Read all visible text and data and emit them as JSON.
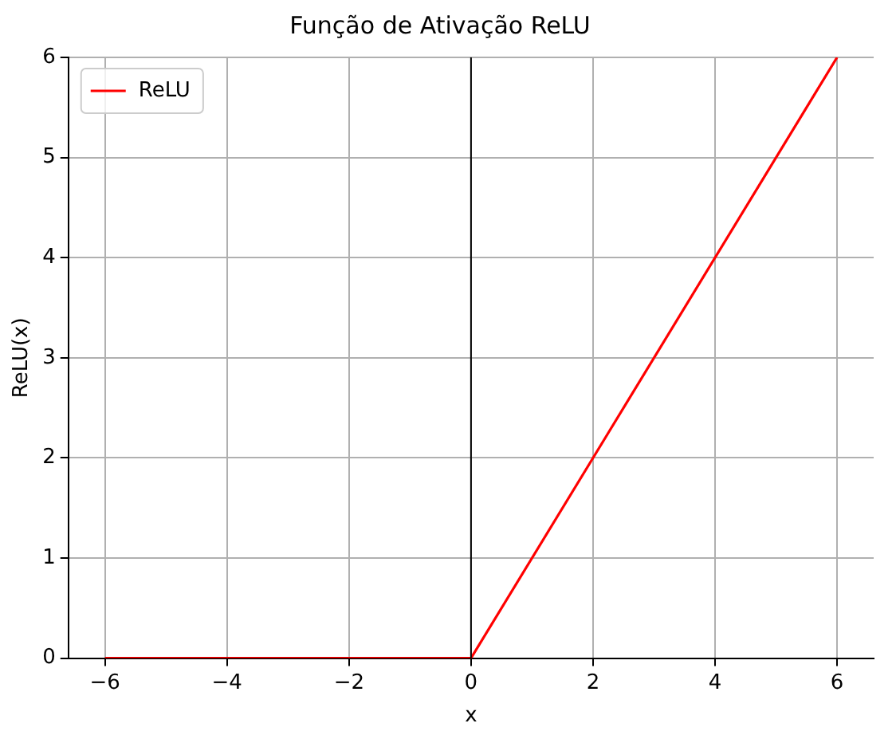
{
  "chart_data": {
    "type": "line",
    "title": "Função de Ativação ReLU",
    "xlabel": "x",
    "ylabel": "ReLU(x)",
    "x": [
      -6,
      0,
      6
    ],
    "series": [
      {
        "name": "ReLU",
        "color": "#ff0000",
        "values": [
          0,
          0,
          6
        ]
      }
    ],
    "xlim": [
      -6.6,
      6.6
    ],
    "ylim": [
      0,
      6
    ],
    "xticks": [
      {
        "value": -6,
        "label": "−6"
      },
      {
        "value": -4,
        "label": "−4"
      },
      {
        "value": -2,
        "label": "−2"
      },
      0,
      2,
      4,
      6
    ],
    "yticks": [
      0,
      1,
      2,
      3,
      4,
      5,
      6
    ],
    "ref_lines": [
      {
        "axis": "x",
        "value": 0,
        "color": "#000000"
      }
    ],
    "grid": true,
    "legend": "top left",
    "marker": "none",
    "line_style": "solid"
  }
}
